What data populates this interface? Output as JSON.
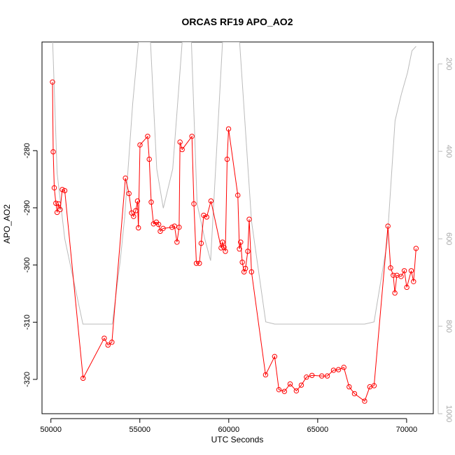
{
  "chart_data": {
    "type": "line",
    "title": "ORCAS RF19 APO_AO2",
    "xlabel": "UTC Seconds",
    "ylabel": "APO_AO2",
    "xlim": [
      49500,
      71500
    ],
    "ylim": [
      -326,
      -261
    ],
    "y2lim": [
      1000,
      150
    ],
    "x_ticks": [
      50000,
      55000,
      60000,
      65000,
      70000
    ],
    "y_ticks": [
      -320,
      -310,
      -300,
      -290,
      -280
    ],
    "y2_ticks": [
      200,
      400,
      600,
      800,
      1000
    ],
    "colors": {
      "primary": "#ff0000",
      "secondary": "#bbbbbb"
    },
    "series": [
      {
        "axis": "left",
        "style": "line+points",
        "color": "#ff0000",
        "points": [
          [
            50090,
            -268.0
          ],
          [
            50130,
            -280.2
          ],
          [
            50190,
            -286.5
          ],
          [
            50280,
            -289.2
          ],
          [
            50350,
            -290.8
          ],
          [
            50430,
            -289.3
          ],
          [
            50520,
            -290.3
          ],
          [
            50640,
            -286.8
          ],
          [
            50780,
            -287.0
          ],
          [
            51810,
            -319.8
          ],
          [
            53000,
            -312.8
          ],
          [
            53210,
            -314.0
          ],
          [
            53430,
            -313.5
          ],
          [
            54190,
            -284.8
          ],
          [
            54390,
            -287.5
          ],
          [
            54540,
            -290.9
          ],
          [
            54650,
            -291.5
          ],
          [
            54770,
            -290.5
          ],
          [
            54870,
            -288.8
          ],
          [
            54920,
            -293.5
          ],
          [
            55010,
            -279.0
          ],
          [
            55440,
            -277.5
          ],
          [
            55530,
            -281.5
          ],
          [
            55640,
            -289.0
          ],
          [
            55770,
            -292.8
          ],
          [
            55930,
            -292.5
          ],
          [
            56060,
            -292.9
          ],
          [
            56150,
            -294.1
          ],
          [
            56310,
            -293.6
          ],
          [
            56810,
            -293.4
          ],
          [
            56950,
            -293.2
          ],
          [
            57090,
            -296.0
          ],
          [
            57210,
            -293.4
          ],
          [
            57260,
            -278.5
          ],
          [
            57380,
            -279.8
          ],
          [
            57930,
            -277.5
          ],
          [
            58040,
            -289.3
          ],
          [
            58180,
            -299.7
          ],
          [
            58350,
            -299.7
          ],
          [
            58450,
            -296.2
          ],
          [
            58590,
            -291.3
          ],
          [
            58760,
            -291.6
          ],
          [
            59000,
            -288.8
          ],
          [
            59570,
            -297.0
          ],
          [
            59650,
            -296.0
          ],
          [
            59730,
            -296.9
          ],
          [
            59810,
            -297.6
          ],
          [
            59910,
            -281.5
          ],
          [
            59990,
            -276.2
          ],
          [
            60510,
            -287.8
          ],
          [
            60600,
            -297.2
          ],
          [
            60670,
            -296.0
          ],
          [
            60760,
            -299.5
          ],
          [
            60860,
            -301.2
          ],
          [
            60940,
            -300.6
          ],
          [
            61070,
            -297.6
          ],
          [
            61150,
            -292.0
          ],
          [
            61280,
            -301.2
          ],
          [
            62070,
            -319.2
          ],
          [
            62580,
            -316.0
          ],
          [
            62820,
            -321.8
          ],
          [
            63130,
            -322.1
          ],
          [
            63450,
            -320.8
          ],
          [
            63800,
            -322.0
          ],
          [
            64080,
            -321.0
          ],
          [
            64370,
            -319.6
          ],
          [
            64680,
            -319.3
          ],
          [
            65230,
            -319.4
          ],
          [
            65540,
            -319.4
          ],
          [
            65890,
            -318.4
          ],
          [
            66170,
            -318.3
          ],
          [
            66470,
            -317.9
          ],
          [
            66770,
            -321.3
          ],
          [
            67070,
            -322.5
          ],
          [
            67640,
            -323.8
          ],
          [
            67930,
            -321.3
          ],
          [
            68170,
            -321.1
          ],
          [
            68950,
            -293.2
          ],
          [
            69100,
            -300.5
          ],
          [
            69250,
            -301.8
          ],
          [
            69340,
            -304.9
          ],
          [
            69450,
            -301.8
          ],
          [
            69690,
            -302.0
          ],
          [
            69870,
            -301.0
          ],
          [
            70010,
            -303.9
          ],
          [
            70260,
            -301.0
          ],
          [
            70390,
            -302.9
          ],
          [
            70530,
            -297.1
          ]
        ]
      },
      {
        "axis": "right",
        "style": "line",
        "color": "#bbbbbb",
        "points": [
          [
            50100,
            150
          ],
          [
            50350,
            450
          ],
          [
            50780,
            600
          ],
          [
            51800,
            795
          ],
          [
            53000,
            795
          ],
          [
            53450,
            795
          ],
          [
            53900,
            650
          ],
          [
            54150,
            550
          ],
          [
            54600,
            290
          ],
          [
            54920,
            150
          ],
          [
            55600,
            150
          ],
          [
            55950,
            440
          ],
          [
            56320,
            530
          ],
          [
            56850,
            440
          ],
          [
            57200,
            250
          ],
          [
            57380,
            150
          ],
          [
            57900,
            150
          ],
          [
            58220,
            520
          ],
          [
            58650,
            600
          ],
          [
            58980,
            650
          ],
          [
            59650,
            150
          ],
          [
            60610,
            150
          ],
          [
            61280,
            560
          ],
          [
            62080,
            790
          ],
          [
            62580,
            795
          ],
          [
            67640,
            795
          ],
          [
            68170,
            790
          ],
          [
            68900,
            610
          ],
          [
            69350,
            330
          ],
          [
            69700,
            270
          ],
          [
            70050,
            220
          ],
          [
            70300,
            170
          ],
          [
            70530,
            160
          ]
        ]
      }
    ]
  }
}
